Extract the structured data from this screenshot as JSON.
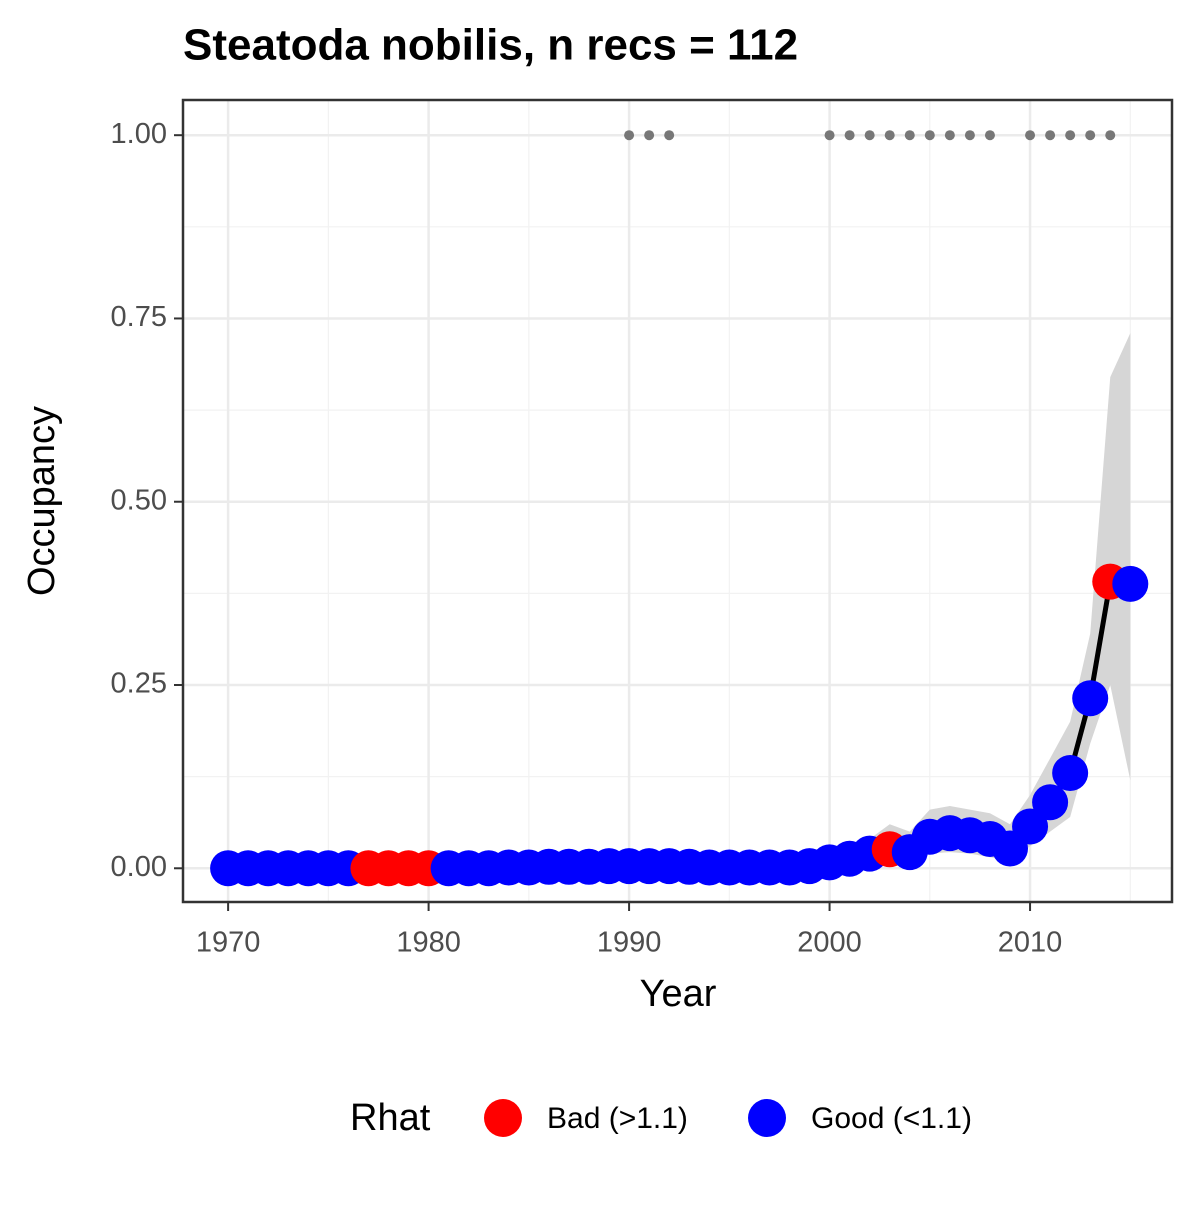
{
  "chart_data": {
    "type": "line",
    "title": "Steatoda nobilis, n recs = 112",
    "x_label": "Year",
    "y_label": "Occupancy",
    "x": [
      1970,
      1971,
      1972,
      1973,
      1974,
      1975,
      1976,
      1977,
      1978,
      1979,
      1980,
      1981,
      1982,
      1983,
      1984,
      1985,
      1986,
      1987,
      1988,
      1989,
      1990,
      1991,
      1992,
      1993,
      1994,
      1995,
      1996,
      1997,
      1998,
      1999,
      2000,
      2001,
      2002,
      2003,
      2004,
      2005,
      2006,
      2007,
      2008,
      2009,
      2010,
      2011,
      2012,
      2013,
      2014,
      2015
    ],
    "series": [
      {
        "color": "#000000",
        "ribbon_color": "#d6d6d6",
        "values": [
          0,
          0,
          0,
          0,
          0,
          0,
          0,
          0,
          0,
          0,
          0,
          0,
          0,
          0,
          0.001,
          0.001,
          0.002,
          0.002,
          0.002,
          0.003,
          0.003,
          0.003,
          0.003,
          0.002,
          0.001,
          0.001,
          0.001,
          0.001,
          0.001,
          0.003,
          0.008,
          0.013,
          0.02,
          0.026,
          0.022,
          0.043,
          0.048,
          0.045,
          0.04,
          0.027,
          0.057,
          0.09,
          0.13,
          0.232,
          0.391,
          0.388
        ],
        "lower": [
          0,
          0,
          0,
          0,
          0,
          0,
          0,
          0,
          0,
          0,
          0,
          0,
          0,
          0,
          0,
          0,
          0,
          0,
          0,
          0,
          0,
          0,
          0,
          0,
          0,
          0,
          0,
          0,
          0,
          0,
          0.002,
          0.005,
          0.01,
          0.015,
          0.01,
          0.02,
          0.022,
          0.02,
          0.015,
          0.01,
          0.03,
          0.05,
          0.07,
          0.17,
          0.25,
          0.12
        ],
        "upper": [
          0.005,
          0.005,
          0.005,
          0.005,
          0.005,
          0.005,
          0.005,
          0.005,
          0.005,
          0.005,
          0.005,
          0.005,
          0.005,
          0.005,
          0.005,
          0.005,
          0.005,
          0.005,
          0.005,
          0.005,
          0.005,
          0.005,
          0.005,
          0.005,
          0.005,
          0.005,
          0.005,
          0.005,
          0.005,
          0.005,
          0.02,
          0.025,
          0.04,
          0.06,
          0.05,
          0.08,
          0.085,
          0.08,
          0.075,
          0.06,
          0.1,
          0.15,
          0.2,
          0.32,
          0.67,
          0.73
        ],
        "rhat": [
          1,
          1,
          1,
          1,
          1,
          1,
          1,
          0,
          0,
          0,
          0,
          1,
          1,
          1,
          1,
          1,
          1,
          1,
          1,
          1,
          1,
          1,
          1,
          1,
          1,
          1,
          1,
          1,
          1,
          1,
          1,
          1,
          1,
          0,
          1,
          1,
          1,
          1,
          1,
          1,
          1,
          1,
          1,
          1,
          0,
          1
        ]
      }
    ],
    "records": {
      "color": "#777777",
      "x": [
        1990,
        1991,
        1992,
        2000,
        2001,
        2002,
        2003,
        2004,
        2005,
        2006,
        2007,
        2008,
        2010,
        2011,
        2012,
        2013,
        2014
      ],
      "values": [
        1,
        1,
        1,
        1,
        1,
        1,
        1,
        1,
        1,
        1,
        1,
        1,
        1,
        1,
        1,
        1,
        1
      ]
    },
    "legend": {
      "title": "Rhat",
      "position": "bottom",
      "entries": [
        {
          "label": "Bad (>1.1)",
          "color": "#ff0000"
        },
        {
          "label": "Good (<1.1)",
          "color": "#0000ff"
        }
      ]
    },
    "xlim": [
      1967.75,
      2017.08
    ],
    "ylim": [
      -0.046,
      1.048
    ],
    "xticks": [
      1970,
      1980,
      1990,
      2000,
      2010
    ],
    "yticks": [
      {
        "value": 0,
        "label": "0.00"
      },
      {
        "value": 0.25,
        "label": "0.25"
      },
      {
        "value": 0.5,
        "label": "0.50"
      },
      {
        "value": 0.75,
        "label": "0.75"
      },
      {
        "value": 1,
        "label": "1.00"
      }
    ],
    "xminor": [
      1975,
      1985,
      1995,
      2005,
      2015
    ],
    "yminor": [
      0.125,
      0.375,
      0.625,
      0.875
    ],
    "grid": true
  }
}
